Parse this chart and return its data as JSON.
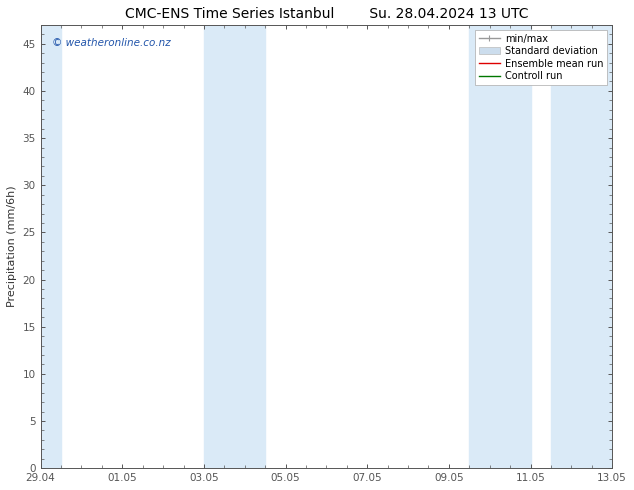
{
  "title_left": "CMC-ENS Time Series Istanbul",
  "title_right": "Su. 28.04.2024 13 UTC",
  "ylabel": "Precipitation (mm/6h)",
  "ylim": [
    0,
    47
  ],
  "yticks": [
    0,
    5,
    10,
    15,
    20,
    25,
    30,
    35,
    40,
    45
  ],
  "xtick_labels": [
    "29.04",
    "01.05",
    "03.05",
    "05.05",
    "07.05",
    "09.05",
    "11.05",
    "13.05"
  ],
  "xtick_positions": [
    0,
    2,
    4,
    6,
    8,
    10,
    12,
    14
  ],
  "xlim": [
    0,
    14
  ],
  "band_color": "#daeaf7",
  "background_color": "#ffffff",
  "plot_bg_color": "#ffffff",
  "watermark_text": "© weatheronline.co.nz",
  "watermark_color": "#2255aa",
  "legend_entries": [
    {
      "label": "min/max",
      "color": "#999999",
      "lw": 1.0
    },
    {
      "label": "Standard deviation",
      "color": "#ccdded",
      "lw": 6
    },
    {
      "label": "Ensemble mean run",
      "color": "#dd0000",
      "lw": 1.0
    },
    {
      "label": "Controll run",
      "color": "#007700",
      "lw": 1.0
    }
  ],
  "band_positions": [
    [
      0.0,
      0.5
    ],
    [
      4.0,
      5.5
    ],
    [
      10.5,
      12.0
    ],
    [
      12.5,
      14.0
    ]
  ],
  "title_fontsize": 10,
  "axis_fontsize": 8,
  "tick_fontsize": 7.5,
  "legend_fontsize": 7,
  "spine_color": "#555555",
  "grid_color": "#cccccc"
}
